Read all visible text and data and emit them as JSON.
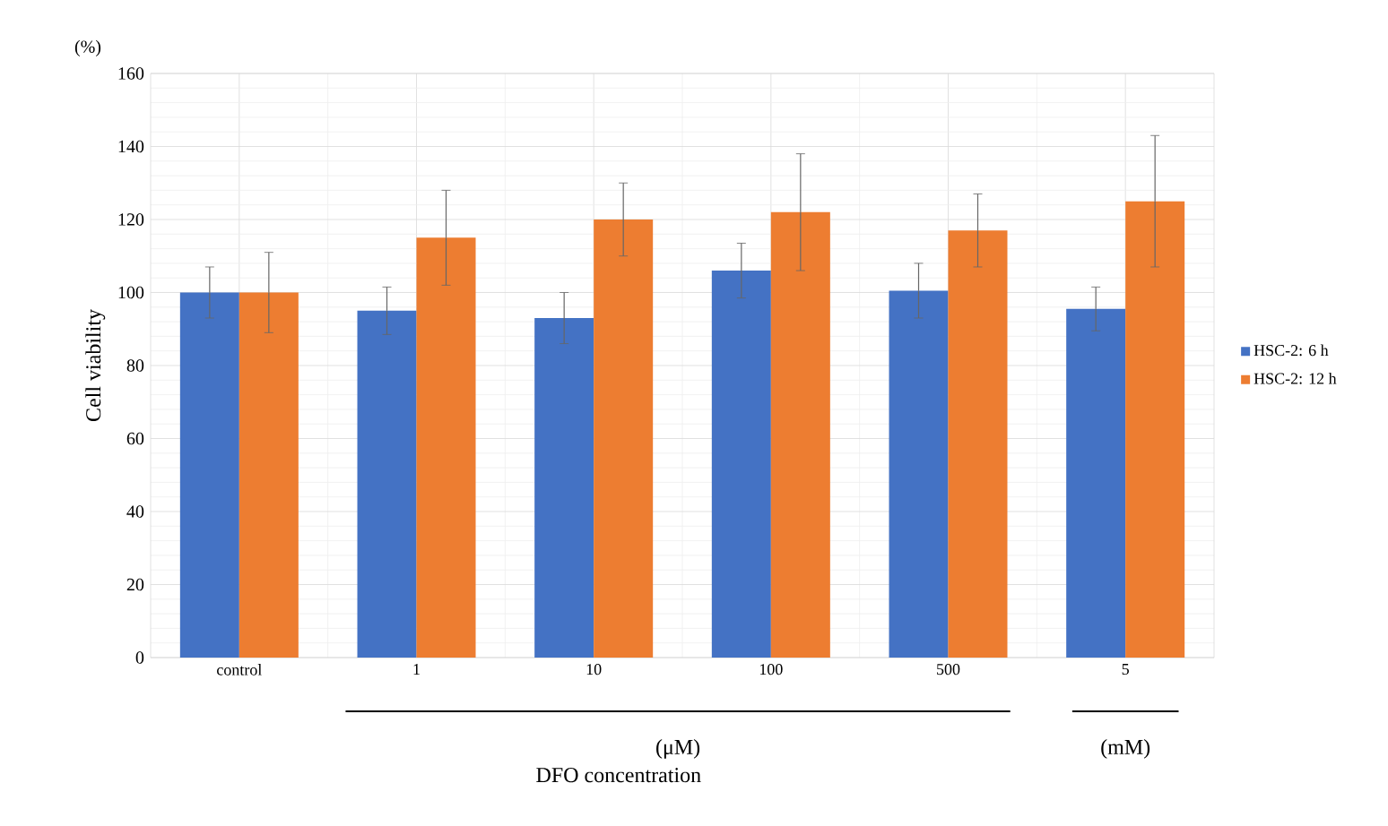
{
  "chart_data": {
    "type": "bar",
    "xlabel": "DFO concentration",
    "ylabel": "Cell viability",
    "categories": [
      "control",
      "1",
      "10",
      "100",
      "500",
      "5"
    ],
    "series": [
      {
        "name": "HSC-2: 6 h",
        "color": "#4472c4",
        "values": [
          100,
          95,
          93,
          106,
          100.5,
          95.5
        ],
        "errors": [
          7,
          6.5,
          7,
          7.5,
          7.5,
          6
        ]
      },
      {
        "name": "HSC-2: 12 h",
        "color": "#ed7d31",
        "values": [
          100,
          115,
          120,
          122,
          117,
          125
        ],
        "errors": [
          11,
          13,
          10,
          16,
          10,
          18
        ]
      }
    ],
    "ylim": [
      0,
      160
    ],
    "yticks": [
      0,
      20,
      40,
      60,
      80,
      100,
      120,
      140,
      160
    ],
    "grid": true,
    "legend": "right",
    "annotations": [
      "(%)",
      "(μM)",
      "(mM)"
    ]
  }
}
